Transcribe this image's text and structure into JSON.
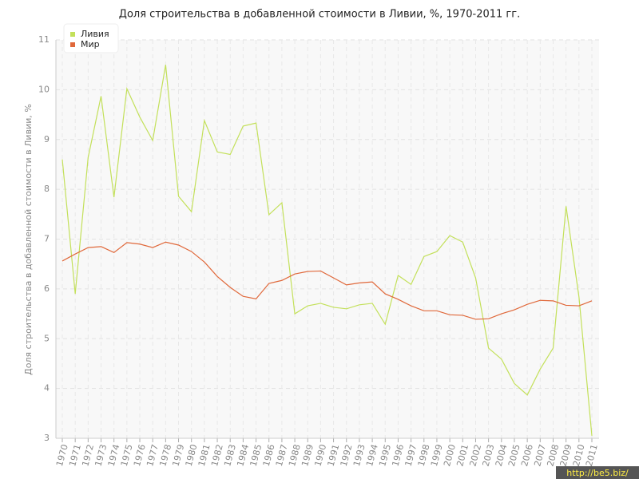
{
  "chart_data": {
    "type": "line",
    "title": "Доля строительства в добавленной стоимости в Ливии, %, 1970-2011 гг.",
    "y_label": "Доля строительства в добавленной стоимости в Ливии, %",
    "x": [
      1970,
      1971,
      1972,
      1973,
      1974,
      1975,
      1976,
      1977,
      1978,
      1979,
      1980,
      1981,
      1982,
      1983,
      1984,
      1985,
      1986,
      1987,
      1988,
      1989,
      1990,
      1991,
      1992,
      1993,
      1994,
      1995,
      1996,
      1997,
      1998,
      1999,
      2000,
      2001,
      2002,
      2003,
      2004,
      2005,
      2006,
      2007,
      2008,
      2009,
      2010,
      2011
    ],
    "xlim": [
      1970,
      2011
    ],
    "ylim": [
      3,
      11
    ],
    "yticks": [
      3,
      4,
      5,
      6,
      7,
      8,
      9,
      10,
      11
    ],
    "grid": true,
    "legend": "top-left",
    "series": [
      {
        "name": "Ливия",
        "color": "#c3e05a",
        "values": [
          8.6,
          5.9,
          8.64,
          9.87,
          7.84,
          10.02,
          9.45,
          8.98,
          10.5,
          7.86,
          7.55,
          9.38,
          8.75,
          8.7,
          9.27,
          9.33,
          7.49,
          7.73,
          5.5,
          5.66,
          5.71,
          5.63,
          5.6,
          5.68,
          5.71,
          5.29,
          6.27,
          6.09,
          6.65,
          6.75,
          7.07,
          6.94,
          6.22,
          4.81,
          4.59,
          4.1,
          3.87,
          4.39,
          4.81,
          7.66,
          5.84,
          3.05
        ]
      },
      {
        "name": "Мир",
        "color": "#e0683a",
        "values": [
          6.56,
          6.7,
          6.83,
          6.85,
          6.73,
          6.93,
          6.9,
          6.83,
          6.94,
          6.88,
          6.75,
          6.54,
          6.25,
          6.03,
          5.85,
          5.8,
          6.11,
          6.17,
          6.3,
          6.35,
          6.36,
          6.22,
          6.08,
          6.12,
          6.14,
          5.9,
          5.79,
          5.66,
          5.56,
          5.56,
          5.48,
          5.47,
          5.39,
          5.4,
          5.5,
          5.58,
          5.69,
          5.77,
          5.76,
          5.67,
          5.66,
          5.76
        ]
      }
    ],
    "watermark": "http://be5.biz/"
  }
}
